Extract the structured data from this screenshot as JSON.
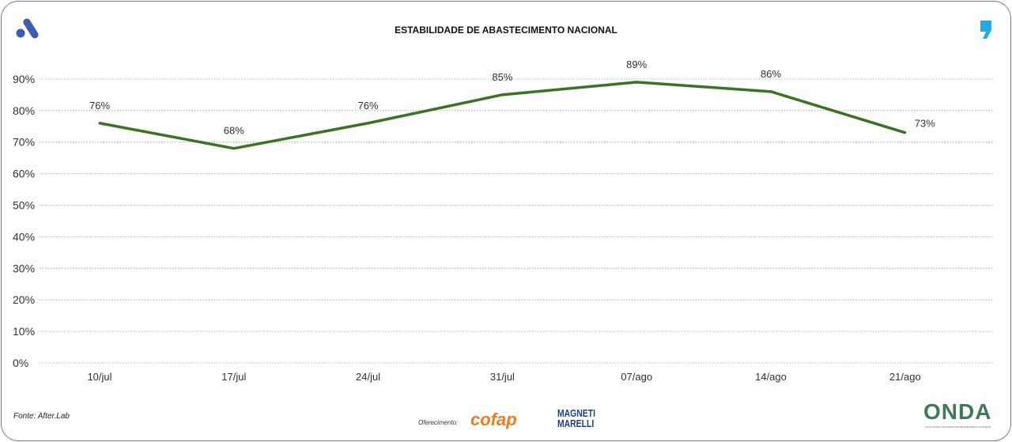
{
  "header": {
    "title": "ESTABILIDADE DE ABASTECIMENTO NACIONAL"
  },
  "footer": {
    "source": "Fonte: After.Lab",
    "sponsor_label": "Oferecimento:",
    "sponsor1": "cofap",
    "sponsor2_line1": "MAGNETI",
    "sponsor2_line2": "MARELLI",
    "brand": "ONDA",
    "brand_sub": "OSCILAÇÕES NOS NÍVEIS DE ABASTECIMENTO E PREÇO"
  },
  "colors": {
    "line": "#3d7226",
    "logo_left": "#3a5bb8",
    "logo_right": "#27a8e0"
  },
  "chart_data": {
    "type": "line",
    "title": "ESTABILIDADE DE ABASTECIMENTO NACIONAL",
    "categories": [
      "10/jul",
      "17/jul",
      "24/jul",
      "31/jul",
      "07/ago",
      "14/ago",
      "21/ago"
    ],
    "values": [
      76,
      68,
      76,
      85,
      89,
      86,
      73
    ],
    "data_labels": [
      "76%",
      "68%",
      "76%",
      "85%",
      "89%",
      "86%",
      "73%"
    ],
    "yticks": [
      "0%",
      "10%",
      "20%",
      "30%",
      "40%",
      "50%",
      "60%",
      "70%",
      "80%",
      "90%"
    ],
    "ylim": [
      0,
      90
    ],
    "grid": true
  }
}
